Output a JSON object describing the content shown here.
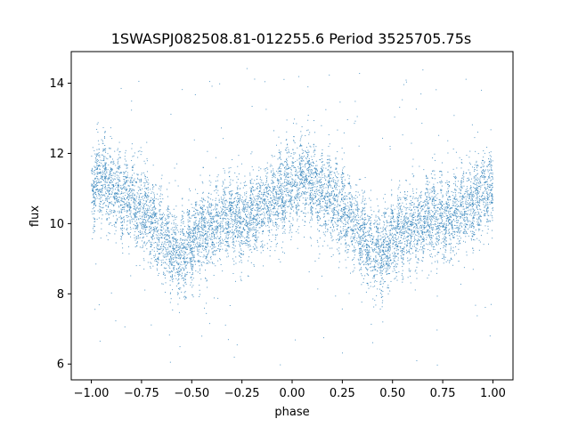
{
  "chart_data": {
    "type": "scatter",
    "title": "1SWASPJ082508.81-012255.6 Period 3525705.75s",
    "xlabel": "phase",
    "ylabel": "flux",
    "xlim": [
      -1.1,
      1.1
    ],
    "ylim": [
      5.55,
      14.9
    ],
    "xticks": [
      -1.0,
      -0.75,
      -0.5,
      -0.25,
      0.0,
      0.25,
      0.5,
      0.75,
      1.0
    ],
    "xtick_labels": [
      "−1.00",
      "−0.75",
      "−0.50",
      "−0.25",
      "0.00",
      "0.25",
      "0.50",
      "0.75",
      "1.00"
    ],
    "yticks": [
      6,
      8,
      10,
      12,
      14
    ],
    "ytick_labels": [
      "6",
      "8",
      "10",
      "12",
      "14"
    ],
    "grid": false,
    "marker_color": "#1f77b4",
    "series": [
      {
        "phase_range": [
          -1.0,
          1.0
        ],
        "mean_flux_profile": {
          "phase": [
            0.0,
            0.05,
            0.1,
            0.15,
            0.2,
            0.25,
            0.3,
            0.35,
            0.4,
            0.45,
            0.5,
            0.55,
            0.6,
            0.65,
            0.7,
            0.75,
            0.8,
            0.85,
            0.9,
            0.95,
            1.0
          ],
          "flux": [
            11.0,
            11.3,
            11.1,
            10.8,
            10.7,
            10.4,
            10.0,
            9.7,
            9.3,
            9.1,
            9.5,
            9.8,
            9.9,
            10.1,
            10.3,
            10.0,
            10.3,
            10.5,
            10.6,
            10.9,
            11.0
          ]
        },
        "scatter_sigma": 0.55,
        "point_count": 9000,
        "outlier_flux_range": [
          5.9,
          14.5
        ]
      }
    ]
  }
}
